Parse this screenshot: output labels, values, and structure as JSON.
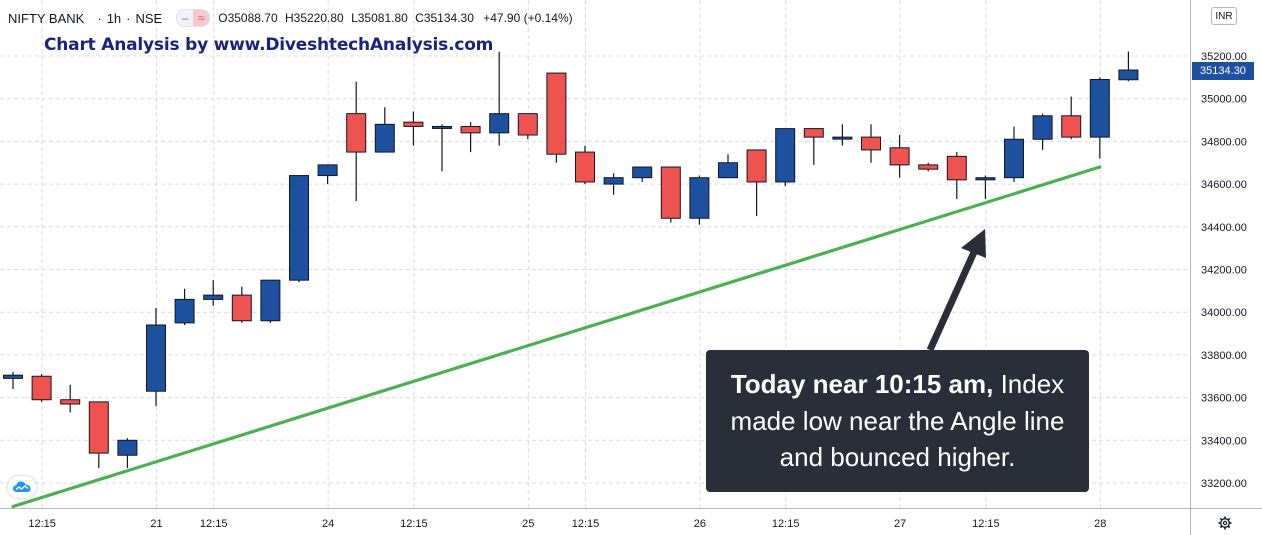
{
  "header": {
    "symbol": "NIFTY BANK",
    "interval": "1h",
    "exchange": "NSE",
    "ohlc": {
      "o_label": "O",
      "o": "35088.70",
      "h_label": "H",
      "h": "35220.80",
      "l_label": "L",
      "l": "35081.80",
      "c_label": "C",
      "c": "35134.30",
      "change": "+47.90 (+0.14%)"
    }
  },
  "caption": "Chart Analysis by www.DiveshtechAnalysis.com",
  "callout": {
    "bold": "Today near 10:15 am,",
    "rest_line1": " Index",
    "line2": "made low near the Angle line",
    "line3": "and bounced higher."
  },
  "currency_badge": "INR",
  "last_price_label": "35134.30",
  "icons": {
    "logo": "tradingview-cloud-icon",
    "settings": "gear-icon"
  },
  "colors": {
    "up": "#1e50a0",
    "down": "#ef5350",
    "trendline": "#4caf50",
    "grid": "#d9dce3",
    "callout_bg": "#2a2e39"
  },
  "chart_data": {
    "type": "candlestick",
    "y_ticks": [
      "33200.00",
      "33400.00",
      "33600.00",
      "33800.00",
      "34000.00",
      "34200.00",
      "34400.00",
      "34600.00",
      "34800.00",
      "35000.00",
      "35200.00"
    ],
    "x_ticks": [
      {
        "label": "12:15",
        "index": 1
      },
      {
        "label": "21",
        "index": 5
      },
      {
        "label": "12:15",
        "index": 7
      },
      {
        "label": "24",
        "index": 11
      },
      {
        "label": "12:15",
        "index": 14
      },
      {
        "label": "25",
        "index": 18
      },
      {
        "label": "12:15",
        "index": 20
      },
      {
        "label": "26",
        "index": 24
      },
      {
        "label": "12:15",
        "index": 27
      },
      {
        "label": "27",
        "index": 31
      },
      {
        "label": "12:15",
        "index": 34
      },
      {
        "label": "28",
        "index": 38
      }
    ],
    "ylim": [
      33080,
      35330
    ],
    "trendline": {
      "from": {
        "index": 0,
        "value": 33090
      },
      "to": {
        "index": 38,
        "value": 34680
      }
    },
    "candles": [
      {
        "o": 33690,
        "h": 33720,
        "l": 33640,
        "c": 33705
      },
      {
        "o": 33700,
        "h": 33710,
        "l": 33580,
        "c": 33590
      },
      {
        "o": 33590,
        "h": 33660,
        "l": 33530,
        "c": 33570
      },
      {
        "o": 33580,
        "h": 33580,
        "l": 33270,
        "c": 33340
      },
      {
        "o": 33330,
        "h": 33410,
        "l": 33270,
        "c": 33400
      },
      {
        "o": 33630,
        "h": 34020,
        "l": 33560,
        "c": 33940
      },
      {
        "o": 33950,
        "h": 34110,
        "l": 33940,
        "c": 34060
      },
      {
        "o": 34060,
        "h": 34150,
        "l": 34030,
        "c": 34080
      },
      {
        "o": 34080,
        "h": 34120,
        "l": 33950,
        "c": 33960
      },
      {
        "o": 33960,
        "h": 34150,
        "l": 33950,
        "c": 34150
      },
      {
        "o": 34150,
        "h": 34640,
        "l": 34140,
        "c": 34640
      },
      {
        "o": 34640,
        "h": 34690,
        "l": 34600,
        "c": 34690
      },
      {
        "o": 34930,
        "h": 35080,
        "l": 34520,
        "c": 34750
      },
      {
        "o": 34750,
        "h": 34960,
        "l": 34750,
        "c": 34880
      },
      {
        "o": 34890,
        "h": 34940,
        "l": 34780,
        "c": 34870
      },
      {
        "o": 34870,
        "h": 34880,
        "l": 34660,
        "c": 34870
      },
      {
        "o": 34870,
        "h": 34890,
        "l": 34750,
        "c": 34840
      },
      {
        "o": 34840,
        "h": 35220,
        "l": 34780,
        "c": 34930
      },
      {
        "o": 34930,
        "h": 34930,
        "l": 34810,
        "c": 34830
      },
      {
        "o": 35120,
        "h": 35120,
        "l": 34700,
        "c": 34740
      },
      {
        "o": 34750,
        "h": 34780,
        "l": 34600,
        "c": 34610
      },
      {
        "o": 34600,
        "h": 34650,
        "l": 34550,
        "c": 34630
      },
      {
        "o": 34630,
        "h": 34680,
        "l": 34610,
        "c": 34680
      },
      {
        "o": 34680,
        "h": 34680,
        "l": 34420,
        "c": 34440
      },
      {
        "o": 34440,
        "h": 34640,
        "l": 34410,
        "c": 34630
      },
      {
        "o": 34630,
        "h": 34740,
        "l": 34630,
        "c": 34700
      },
      {
        "o": 34760,
        "h": 34760,
        "l": 34450,
        "c": 34610
      },
      {
        "o": 34610,
        "h": 34860,
        "l": 34590,
        "c": 34860
      },
      {
        "o": 34860,
        "h": 34860,
        "l": 34690,
        "c": 34820
      },
      {
        "o": 34820,
        "h": 34880,
        "l": 34780,
        "c": 34820
      },
      {
        "o": 34820,
        "h": 34880,
        "l": 34700,
        "c": 34760
      },
      {
        "o": 34770,
        "h": 34830,
        "l": 34630,
        "c": 34690
      },
      {
        "o": 34690,
        "h": 34700,
        "l": 34660,
        "c": 34670
      },
      {
        "o": 34730,
        "h": 34750,
        "l": 34530,
        "c": 34620
      },
      {
        "o": 34620,
        "h": 34640,
        "l": 34530,
        "c": 34630
      },
      {
        "o": 34630,
        "h": 34870,
        "l": 34610,
        "c": 34810
      },
      {
        "o": 34810,
        "h": 34930,
        "l": 34760,
        "c": 34920
      },
      {
        "o": 34920,
        "h": 35010,
        "l": 34810,
        "c": 34820
      },
      {
        "o": 34820,
        "h": 35100,
        "l": 34720,
        "c": 35090
      },
      {
        "o": 35088.7,
        "h": 35220.8,
        "l": 35081.8,
        "c": 35134.3
      }
    ]
  }
}
